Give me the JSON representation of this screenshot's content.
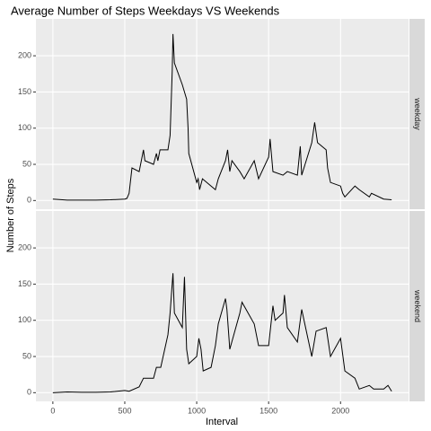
{
  "chart_data": {
    "type": "line",
    "title": "Average Number of Steps Weekdays VS Weekends",
    "x_label": "Interval",
    "y_label": "Number of Steps",
    "xlim": [
      -117.75,
      2472.75
    ],
    "xticks": [
      0,
      500,
      1000,
      1500,
      2000
    ],
    "ylim": [
      -12,
      251
    ],
    "yticks": [
      0,
      50,
      100,
      150,
      200
    ],
    "grid": true,
    "color": "#000000",
    "panels": [
      {
        "label": "weekday",
        "x": [
          0,
          100,
          200,
          300,
          400,
          500,
          515,
          530,
          550,
          600,
          615,
          630,
          640,
          700,
          720,
          730,
          745,
          800,
          815,
          830,
          835,
          845,
          900,
          930,
          940,
          945,
          1000,
          1010,
          1020,
          1040,
          1100,
          1130,
          1150,
          1200,
          1215,
          1230,
          1245,
          1300,
          1330,
          1400,
          1430,
          1500,
          1510,
          1530,
          1600,
          1630,
          1700,
          1720,
          1730,
          1800,
          1820,
          1840,
          1900,
          1910,
          1930,
          2000,
          2015,
          2030,
          2100,
          2130,
          2200,
          2215,
          2300,
          2355
        ],
        "values": [
          2,
          0.5,
          0.5,
          0.5,
          1,
          2,
          3,
          10,
          45,
          40,
          55,
          70,
          55,
          50,
          65,
          55,
          70,
          70,
          90,
          180,
          230,
          190,
          160,
          140,
          100,
          65,
          25,
          30,
          15,
          30,
          20,
          15,
          30,
          55,
          70,
          40,
          55,
          40,
          30,
          55,
          30,
          60,
          85,
          40,
          35,
          40,
          35,
          75,
          35,
          80,
          108,
          80,
          70,
          45,
          25,
          20,
          10,
          5,
          20,
          15,
          5,
          10,
          2,
          1
        ]
      },
      {
        "label": "weekend",
        "x": [
          0,
          100,
          200,
          300,
          400,
          500,
          530,
          600,
          630,
          700,
          720,
          750,
          800,
          815,
          835,
          845,
          900,
          915,
          930,
          945,
          1000,
          1015,
          1030,
          1045,
          1100,
          1130,
          1150,
          1200,
          1210,
          1230,
          1300,
          1315,
          1400,
          1430,
          1500,
          1530,
          1545,
          1600,
          1610,
          1630,
          1700,
          1730,
          1800,
          1830,
          1900,
          1930,
          2000,
          2030,
          2100,
          2130,
          2200,
          2230,
          2300,
          2330,
          2355
        ],
        "values": [
          0,
          1,
          0.5,
          0.5,
          1,
          3,
          2,
          8,
          20,
          20,
          35,
          35,
          80,
          110,
          165,
          110,
          90,
          160,
          60,
          40,
          50,
          75,
          60,
          30,
          35,
          65,
          95,
          130,
          115,
          60,
          110,
          125,
          95,
          65,
          65,
          120,
          100,
          110,
          135,
          90,
          70,
          115,
          50,
          85,
          90,
          50,
          75,
          30,
          20,
          5,
          10,
          5,
          5,
          10,
          2
        ]
      }
    ]
  }
}
